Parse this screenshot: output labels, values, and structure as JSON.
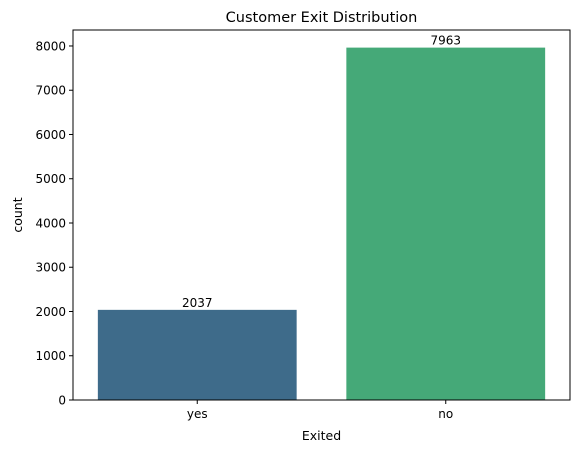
{
  "chart_data": {
    "type": "bar",
    "title": "Customer Exit Distribution",
    "xlabel": "Exited",
    "ylabel": "count",
    "categories": [
      "yes",
      "no"
    ],
    "values": [
      2037,
      7963
    ],
    "data_labels": [
      "2037",
      "7963"
    ],
    "colors": [
      "#3e6b8a",
      "#45a978"
    ],
    "ylim": [
      0,
      8361
    ],
    "yticks": [
      0,
      1000,
      2000,
      3000,
      4000,
      5000,
      6000,
      7000,
      8000
    ],
    "ytick_labels": [
      "0",
      "1000",
      "2000",
      "3000",
      "4000",
      "5000",
      "6000",
      "7000",
      "8000"
    ],
    "grid": false,
    "legend": "none"
  }
}
